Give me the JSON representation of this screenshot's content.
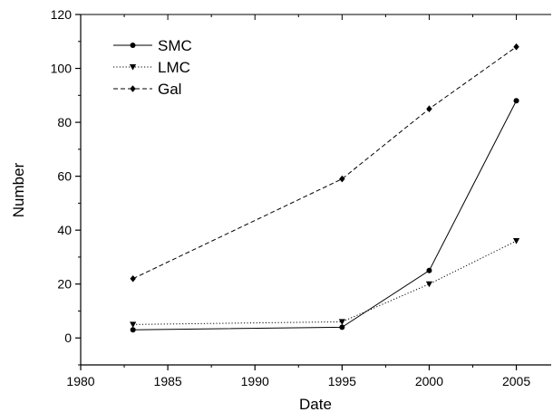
{
  "chart_data": {
    "type": "line",
    "xlabel": "Date",
    "ylabel": "Number",
    "xlim": [
      1980,
      2007
    ],
    "ylim": [
      -10,
      120
    ],
    "xticks": [
      1980,
      1985,
      1990,
      1995,
      2000,
      2005
    ],
    "yticks": [
      0,
      20,
      40,
      60,
      80,
      100,
      120
    ],
    "legend_position": "top-left",
    "grid": false,
    "series": [
      {
        "name": "SMC",
        "marker": "circle",
        "line_style": "solid",
        "x": [
          1983,
          1995,
          2000,
          2005
        ],
        "y": [
          3,
          4,
          25,
          88
        ]
      },
      {
        "name": "LMC",
        "marker": "triangle-down",
        "line_style": "dotted",
        "x": [
          1983,
          1995,
          2000,
          2005
        ],
        "y": [
          5,
          6,
          20,
          36
        ]
      },
      {
        "name": "Gal",
        "marker": "diamond",
        "line_style": "dashed",
        "x": [
          1983,
          1995,
          2000,
          2005
        ],
        "y": [
          22,
          59,
          85,
          108
        ]
      }
    ]
  }
}
